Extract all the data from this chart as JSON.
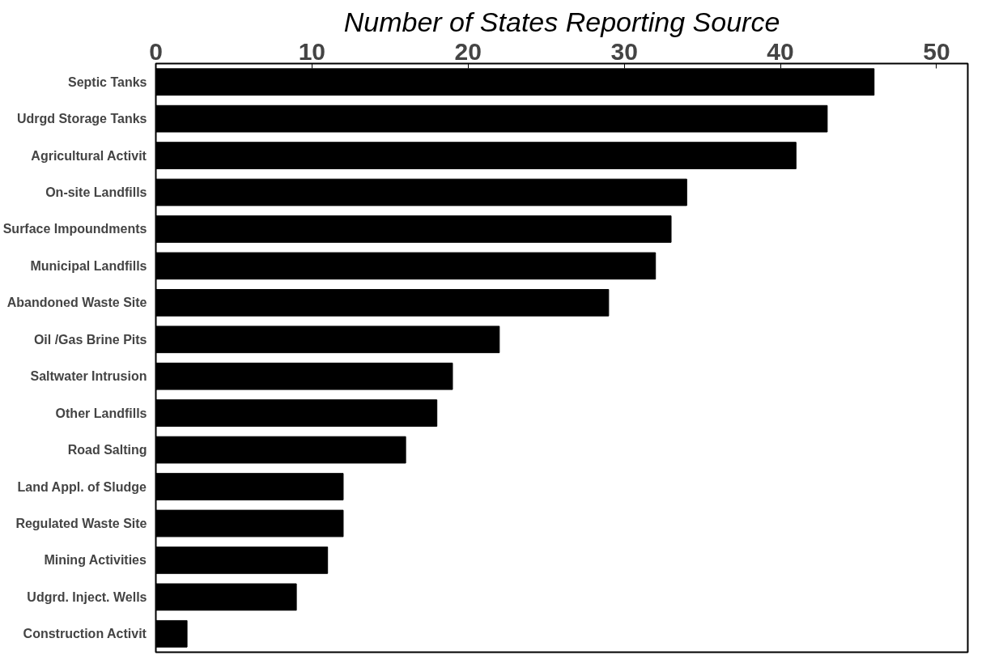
{
  "chart_data": {
    "type": "bar",
    "orientation": "horizontal",
    "title": "Number of States Reporting Source",
    "categories": [
      "Septic Tanks",
      "Udrgd Storage Tanks",
      "Agricultural Activit",
      "On-site Landfills",
      "Surface Impoundments",
      "Municipal Landfills",
      "Abandoned Waste Site",
      "Oil /Gas Brine Pits",
      "Saltwater Intrusion",
      "Other Landfills",
      "Road Salting",
      "Land Appl. of Sludge",
      "Regulated Waste Site",
      "Mining Activities",
      "Udgrd. Inject. Wells",
      "Construction Activit"
    ],
    "values": [
      46,
      43,
      41,
      34,
      33,
      32,
      29,
      22,
      19,
      18,
      16,
      12,
      12,
      11,
      9,
      2
    ],
    "color": "#000000",
    "xlim": [
      0,
      52
    ],
    "xticks": [
      0,
      10,
      20,
      30,
      40,
      50
    ],
    "grid": false
  }
}
